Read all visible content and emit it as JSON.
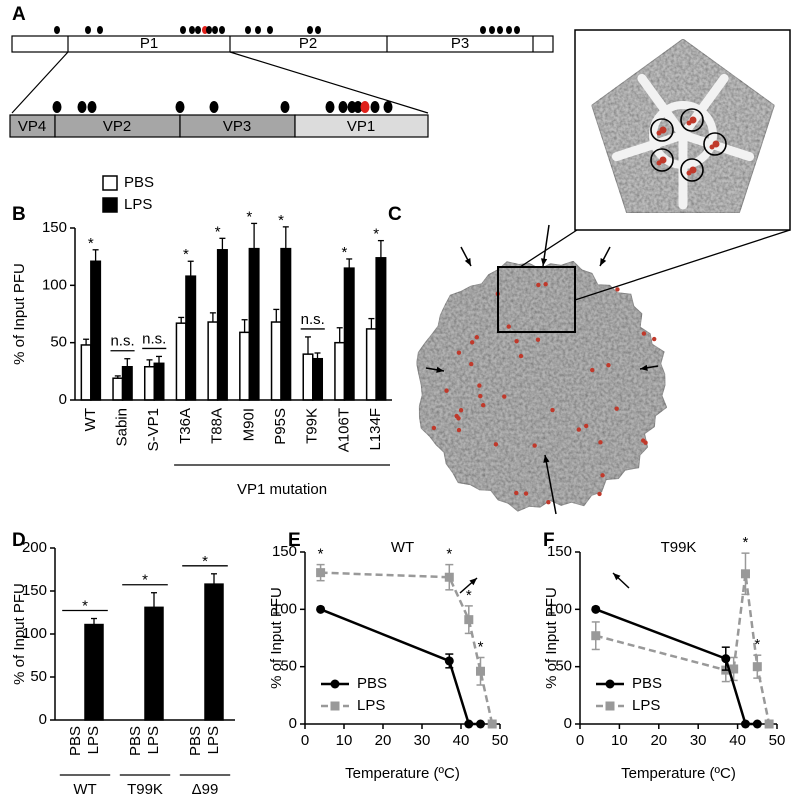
{
  "panel_labels": [
    "A",
    "B",
    "C",
    "D",
    "E",
    "F"
  ],
  "genome": {
    "polyprotein": [
      "P1",
      "P2",
      "P3"
    ],
    "capsid": [
      "VP4",
      "VP2",
      "VP3",
      "VP1"
    ]
  },
  "chart_data": [
    {
      "type": "bar",
      "ylabel": "% of Input PFU",
      "categories": [
        "WT",
        "Sabin",
        "S-VP1",
        "T36A",
        "T88A",
        "M90I",
        "P95S",
        "T99K",
        "A106T",
        "L134F"
      ],
      "series": [
        {
          "name": "PBS",
          "color": "#ffffff",
          "values": [
            48,
            19,
            29,
            67,
            68,
            59,
            68,
            40,
            50,
            62
          ],
          "errors": [
            5,
            2,
            6,
            5,
            8,
            11,
            11,
            15,
            13,
            9
          ]
        },
        {
          "name": "LPS",
          "color": "#000000",
          "values": [
            121,
            29,
            32,
            108,
            131,
            132,
            132,
            36,
            115,
            124
          ],
          "errors": [
            10,
            7,
            6,
            13,
            10,
            22,
            19,
            5,
            8,
            15
          ]
        }
      ],
      "annotations": [
        "*",
        "n.s.",
        "n.s.",
        "*",
        "*",
        "*",
        "*",
        "n.s.",
        "*",
        "*"
      ],
      "group_label": "VP1 mutation",
      "ylim": [
        0,
        150
      ],
      "yticks": [
        0,
        50,
        100,
        150
      ]
    },
    {
      "type": "bar",
      "ylabel": "% of Input PFU",
      "categories": [
        "WT",
        "T99K",
        "Δ99"
      ],
      "series": [
        {
          "name": "PBS",
          "color": "#ffffff",
          "values": [
            0,
            0,
            0
          ],
          "errors": [
            0,
            0,
            0
          ]
        },
        {
          "name": "LPS",
          "color": "#000000",
          "values": [
            111,
            131,
            158
          ],
          "errors": [
            7,
            17,
            12
          ]
        }
      ],
      "annotations": [
        "*",
        "*",
        "*"
      ],
      "ylim": [
        0,
        200
      ],
      "yticks": [
        0,
        50,
        100,
        150,
        200
      ]
    },
    {
      "type": "line",
      "title": "WT",
      "xlabel": "Temperature (ºC)",
      "ylabel": "% of Input PFU",
      "series": [
        {
          "name": "PBS",
          "color": "#000000",
          "marker": "circle",
          "dashed": false,
          "x": [
            4,
            37,
            42,
            45
          ],
          "values": [
            100,
            55,
            0,
            0
          ],
          "errors": [
            0,
            6,
            0,
            0
          ]
        },
        {
          "name": "LPS",
          "color": "#999999",
          "marker": "square",
          "dashed": true,
          "x": [
            4,
            37,
            42,
            45,
            48
          ],
          "values": [
            132,
            128,
            91,
            46,
            0
          ],
          "errors": [
            7,
            11,
            12,
            12,
            0
          ],
          "annotations": [
            {
              "x": 4,
              "text": "*"
            },
            {
              "x": 37,
              "text": "*"
            },
            {
              "x": 42,
              "text": "*"
            },
            {
              "x": 45,
              "text": "*"
            }
          ]
        }
      ],
      "xlim": [
        0,
        50
      ],
      "xticks": [
        0,
        10,
        20,
        30,
        40,
        50
      ],
      "ylim": [
        0,
        150
      ],
      "yticks": [
        0,
        50,
        100,
        150
      ],
      "legend": "lower left"
    },
    {
      "type": "line",
      "title": "T99K",
      "xlabel": "Temperature (ºC)",
      "ylabel": "% of Input PFU",
      "series": [
        {
          "name": "PBS",
          "color": "#000000",
          "marker": "circle",
          "dashed": false,
          "x": [
            4,
            37,
            42,
            45
          ],
          "values": [
            100,
            57,
            0,
            0
          ],
          "errors": [
            0,
            10,
            0,
            0
          ]
        },
        {
          "name": "LPS",
          "color": "#999999",
          "marker": "square",
          "dashed": true,
          "x": [
            4,
            37,
            39,
            42,
            45,
            48
          ],
          "values": [
            77,
            47,
            48,
            131,
            50,
            0
          ],
          "errors": [
            12,
            10,
            10,
            18,
            10,
            0
          ],
          "annotations": [
            {
              "x": 42,
              "text": "*"
            },
            {
              "x": 45,
              "text": "*"
            }
          ]
        }
      ],
      "xlim": [
        0,
        50
      ],
      "xticks": [
        0,
        10,
        20,
        30,
        40,
        50
      ],
      "ylim": [
        0,
        150
      ],
      "yticks": [
        0,
        50,
        100,
        150
      ],
      "legend": "lower left"
    }
  ]
}
